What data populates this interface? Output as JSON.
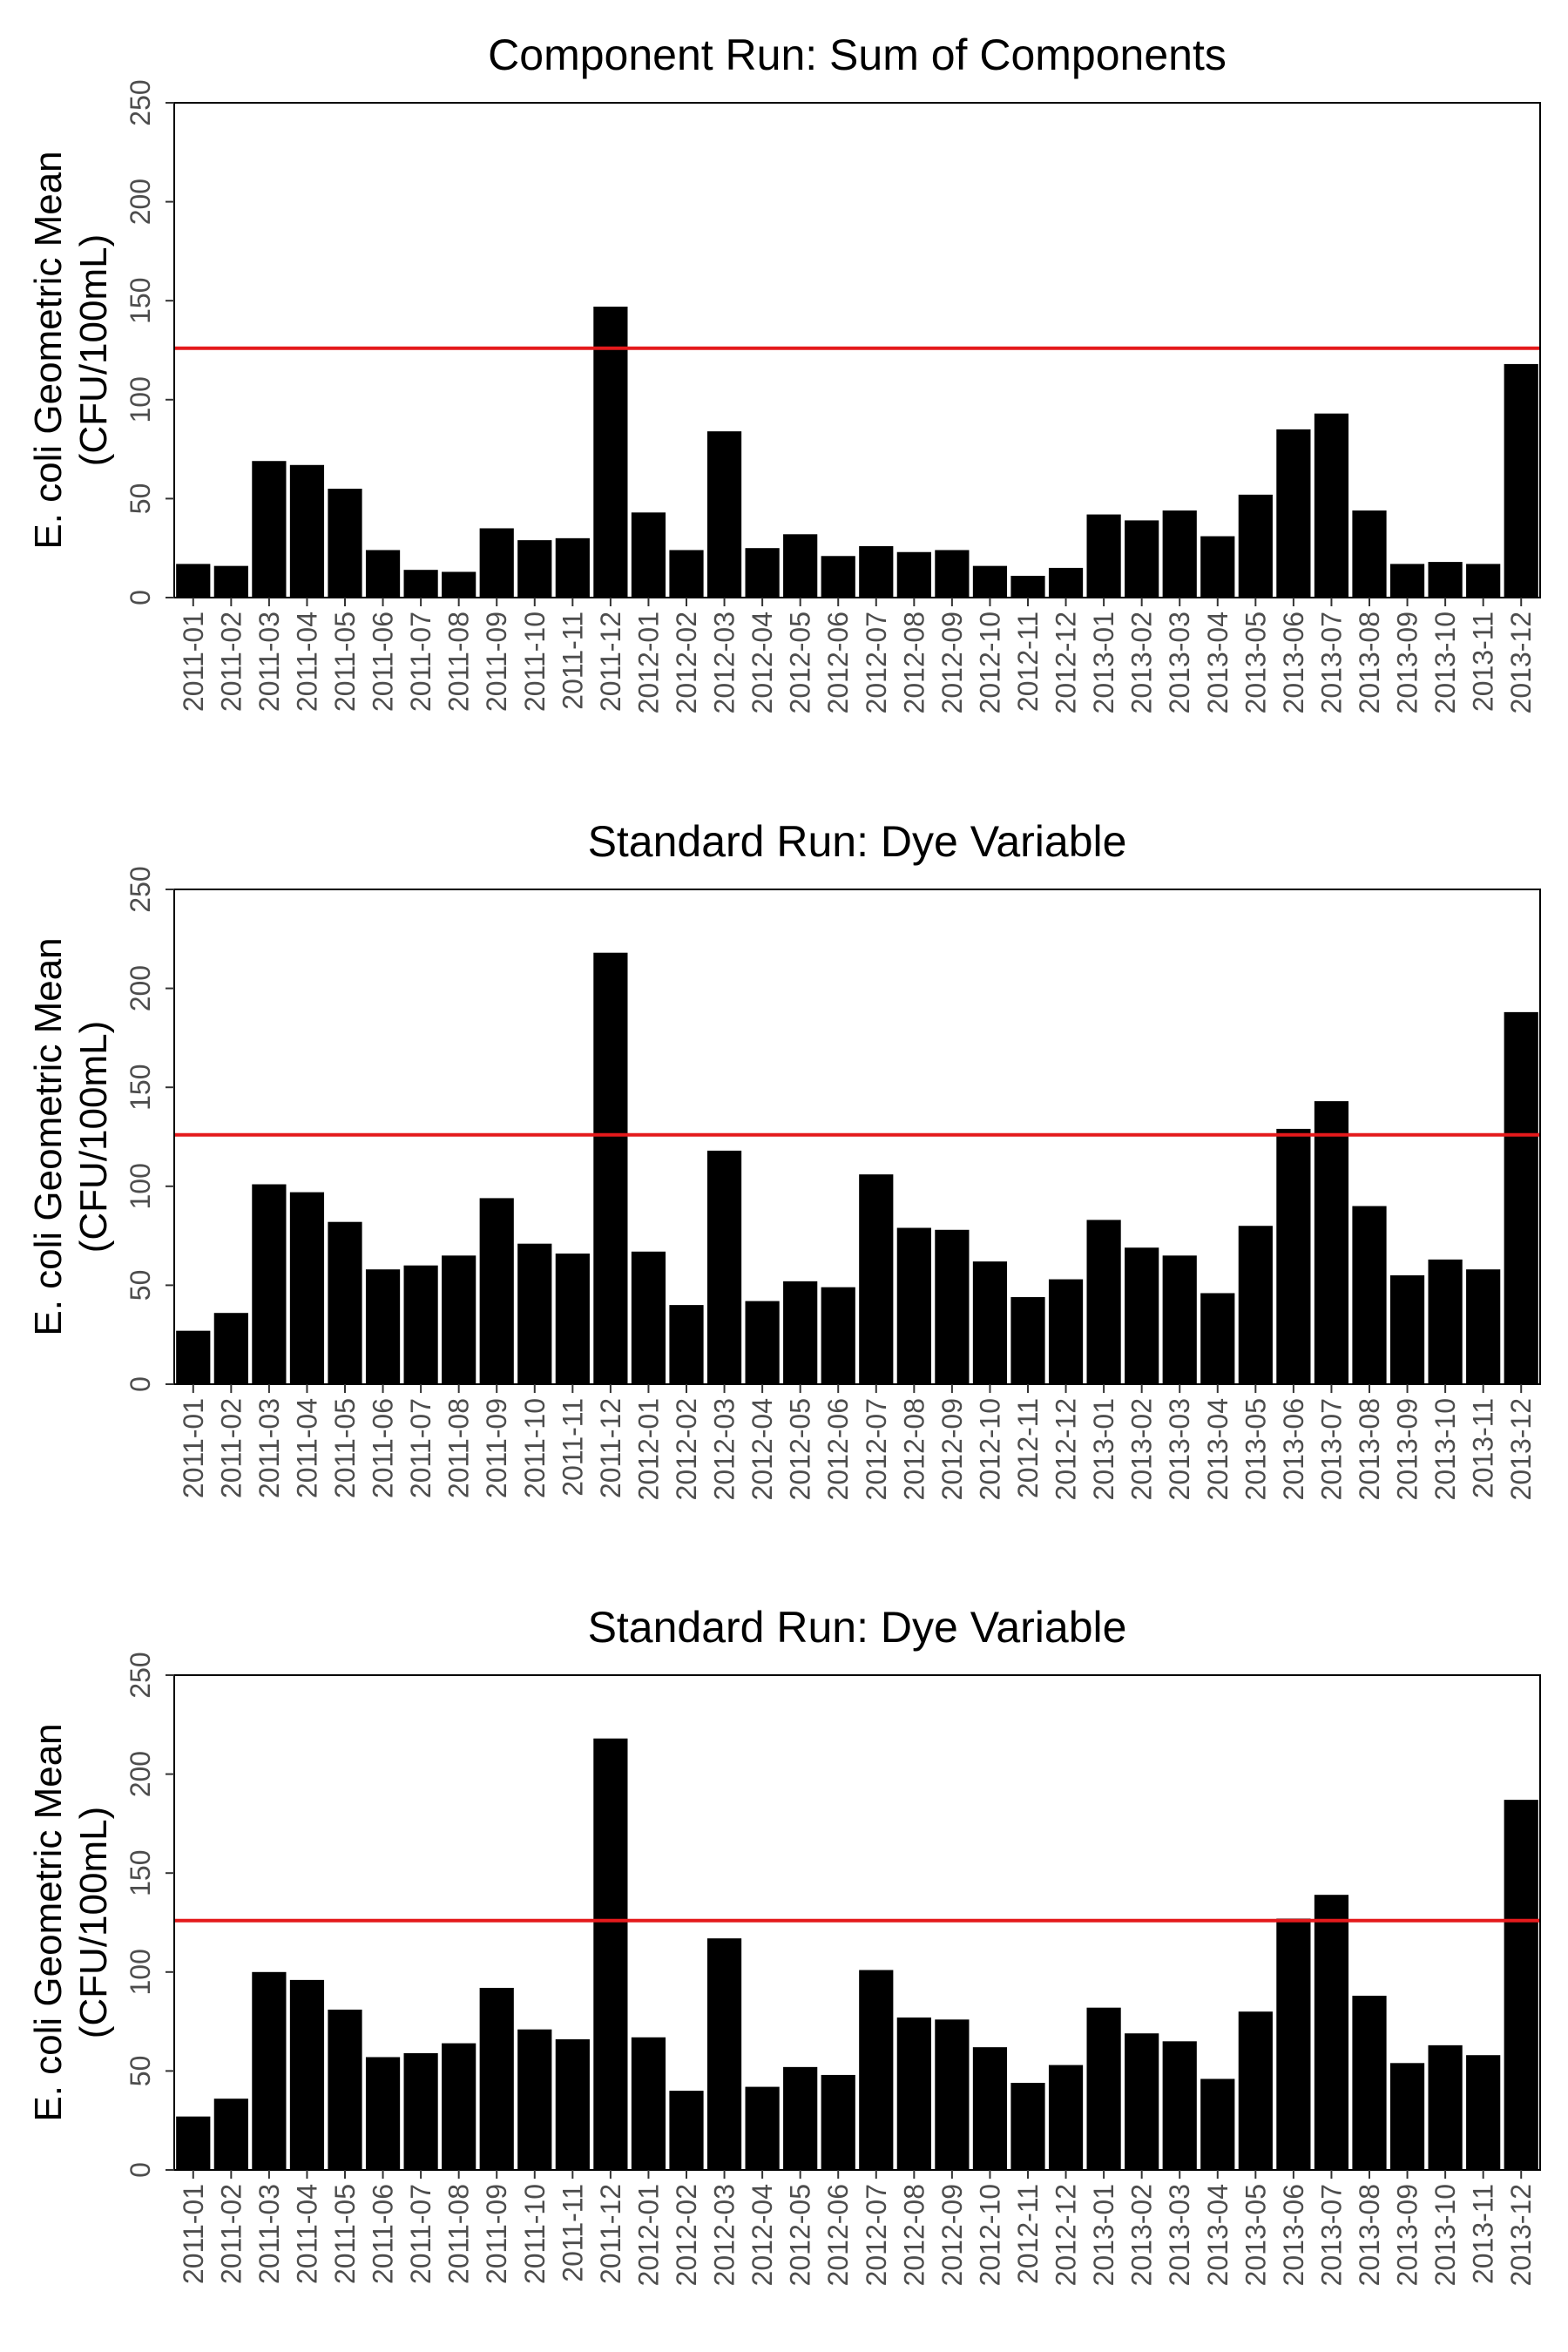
{
  "chart_data": [
    {
      "type": "bar",
      "title": "Component Run: Sum of Components",
      "ylabel": [
        "E. coli Geometric Mean",
        "(CFU/100mL)"
      ],
      "xlabel": "",
      "ylim": [
        0,
        250
      ],
      "yticks": [
        0,
        50,
        100,
        150,
        200,
        250
      ],
      "categories": [
        "2011-01",
        "2011-02",
        "2011-03",
        "2011-04",
        "2011-05",
        "2011-06",
        "2011-07",
        "2011-08",
        "2011-09",
        "2011-10",
        "2011-11",
        "2011-12",
        "2012-01",
        "2012-02",
        "2012-03",
        "2012-04",
        "2012-05",
        "2012-06",
        "2012-07",
        "2012-08",
        "2012-09",
        "2012-10",
        "2012-11",
        "2012-12",
        "2013-01",
        "2013-02",
        "2013-03",
        "2013-04",
        "2013-05",
        "2013-06",
        "2013-07",
        "2013-08",
        "2013-09",
        "2013-10",
        "2013-11",
        "2013-12"
      ],
      "values": [
        17,
        16,
        69,
        67,
        55,
        24,
        14,
        13,
        35,
        29,
        30,
        147,
        43,
        24,
        84,
        25,
        32,
        21,
        26,
        23,
        24,
        16,
        11,
        15,
        42,
        39,
        44,
        31,
        52,
        85,
        93,
        44,
        17,
        18,
        17,
        118
      ],
      "reference_line": 126,
      "reference_color": "#e41a1c",
      "grid": false
    },
    {
      "type": "bar",
      "title": "Standard Run: Dye Variable",
      "ylabel": [
        "E. coli Geometric Mean",
        "(CFU/100mL)"
      ],
      "xlabel": "",
      "ylim": [
        0,
        250
      ],
      "yticks": [
        0,
        50,
        100,
        150,
        200,
        250
      ],
      "categories": [
        "2011-01",
        "2011-02",
        "2011-03",
        "2011-04",
        "2011-05",
        "2011-06",
        "2011-07",
        "2011-08",
        "2011-09",
        "2011-10",
        "2011-11",
        "2011-12",
        "2012-01",
        "2012-02",
        "2012-03",
        "2012-04",
        "2012-05",
        "2012-06",
        "2012-07",
        "2012-08",
        "2012-09",
        "2012-10",
        "2012-11",
        "2012-12",
        "2013-01",
        "2013-02",
        "2013-03",
        "2013-04",
        "2013-05",
        "2013-06",
        "2013-07",
        "2013-08",
        "2013-09",
        "2013-10",
        "2013-11",
        "2013-12"
      ],
      "values": [
        27,
        36,
        101,
        97,
        82,
        58,
        60,
        65,
        94,
        71,
        66,
        218,
        67,
        40,
        118,
        42,
        52,
        49,
        106,
        79,
        78,
        62,
        44,
        53,
        83,
        69,
        65,
        46,
        80,
        129,
        143,
        90,
        55,
        63,
        58,
        188
      ],
      "reference_line": 126,
      "reference_color": "#e41a1c",
      "grid": false
    },
    {
      "type": "bar",
      "title": "Standard Run: Dye Variable",
      "ylabel": [
        "E. coli Geometric Mean",
        "(CFU/100mL)"
      ],
      "xlabel": "",
      "ylim": [
        0,
        250
      ],
      "yticks": [
        0,
        50,
        100,
        150,
        200,
        250
      ],
      "categories": [
        "2011-01",
        "2011-02",
        "2011-03",
        "2011-04",
        "2011-05",
        "2011-06",
        "2011-07",
        "2011-08",
        "2011-09",
        "2011-10",
        "2011-11",
        "2011-12",
        "2012-01",
        "2012-02",
        "2012-03",
        "2012-04",
        "2012-05",
        "2012-06",
        "2012-07",
        "2012-08",
        "2012-09",
        "2012-10",
        "2012-11",
        "2012-12",
        "2013-01",
        "2013-02",
        "2013-03",
        "2013-04",
        "2013-05",
        "2013-06",
        "2013-07",
        "2013-08",
        "2013-09",
        "2013-10",
        "2013-11",
        "2013-12"
      ],
      "values": [
        27,
        36,
        100,
        96,
        81,
        57,
        59,
        64,
        92,
        71,
        66,
        218,
        67,
        40,
        117,
        42,
        52,
        48,
        101,
        77,
        76,
        62,
        44,
        53,
        82,
        69,
        65,
        46,
        80,
        127,
        139,
        88,
        54,
        63,
        58,
        187
      ],
      "reference_line": 126,
      "reference_color": "#e41a1c",
      "grid": false
    }
  ]
}
